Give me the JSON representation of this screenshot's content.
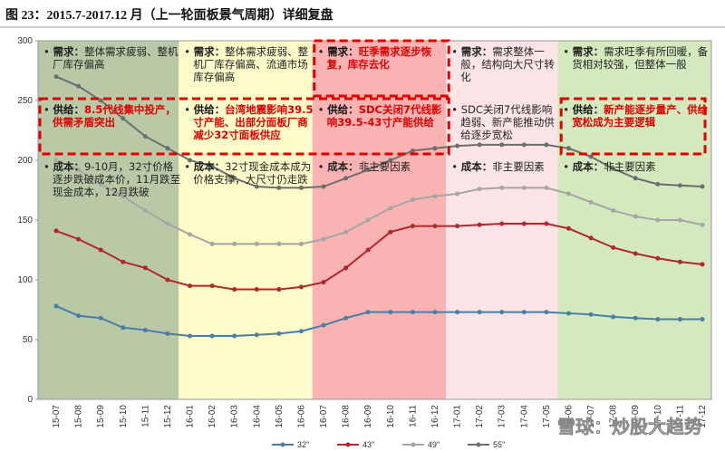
{
  "title": "图 23：2015.7-2017.12 月（上一轮面板景气周期）详细复盘",
  "watermark": "雪球：炒股大趋势",
  "chart_data": {
    "type": "line",
    "categories": [
      "15-07",
      "15-08",
      "15-09",
      "15-10",
      "15-11",
      "15-12",
      "16-01",
      "16-02",
      "16-03",
      "16-04",
      "16-05",
      "16-06",
      "16-07",
      "16-08",
      "16-09",
      "16-10",
      "16-11",
      "16-12",
      "17-01",
      "17-02",
      "17-03",
      "17-04",
      "17-05",
      "17-06",
      "17-07",
      "17-08",
      "17-09",
      "17-10",
      "17-11",
      "17-12"
    ],
    "series": [
      {
        "name": "32''",
        "color": "#4a7fa5",
        "values": [
          78,
          70,
          68,
          60,
          58,
          55,
          53,
          53,
          53,
          54,
          55,
          57,
          62,
          68,
          73,
          73,
          73,
          73,
          73,
          73,
          73,
          73,
          73,
          72,
          71,
          69,
          68,
          67,
          67,
          67
        ]
      },
      {
        "name": "43''",
        "color": "#b3262c",
        "values": [
          141,
          134,
          125,
          115,
          110,
          100,
          95,
          95,
          92,
          92,
          92,
          94,
          98,
          110,
          125,
          140,
          145,
          145,
          145,
          146,
          147,
          147,
          147,
          143,
          135,
          127,
          122,
          118,
          115,
          113
        ]
      },
      {
        "name": "49''",
        "color": "#a6a6a6",
        "values": [
          200,
          192,
          180,
          170,
          158,
          147,
          138,
          130,
          130,
          130,
          130,
          130,
          134,
          140,
          150,
          160,
          167,
          170,
          172,
          176,
          177,
          177,
          177,
          172,
          165,
          158,
          153,
          150,
          150,
          146
        ]
      },
      {
        "name": "55''",
        "color": "#6e6e6e",
        "values": [
          270,
          262,
          250,
          235,
          220,
          210,
          200,
          195,
          185,
          178,
          177,
          177,
          178,
          185,
          192,
          200,
          208,
          210,
          212,
          213,
          213,
          213,
          213,
          210,
          203,
          193,
          185,
          180,
          179,
          178
        ]
      }
    ],
    "ylim": [
      0,
      300
    ],
    "yticks": [
      0,
      50,
      100,
      150,
      200,
      250,
      300
    ],
    "periods": [
      {
        "from": "15-07",
        "to": "15-12",
        "color": "#b9c9a6",
        "demand": {
          "label": "需求：",
          "text": "整体需求疲弱、整机厂库存偏高"
        },
        "supply": {
          "label": "供给：",
          "text": "8.5代线集中投产，供需矛盾突出",
          "highlight": true
        },
        "cost": {
          "label": "成本：",
          "text": "9-10月，32寸价格逐步跌破成本价，11月跌至现金成本，12月跌破"
        }
      },
      {
        "from": "16-01",
        "to": "16-06",
        "color": "#fdfbc9",
        "demand": {
          "label": "需求：",
          "text": "整体需求疲弱、整机厂库存偏高、流通市场库存偏高"
        },
        "supply": {
          "label": "供给：",
          "text": "台湾地震影响39.5寸产能、出部分面板厂商减少32寸面板供应",
          "highlight": true
        },
        "cost": {
          "label": "成本：",
          "text": "32寸现金成本成为价格支撑，大尺寸仍走跌"
        }
      },
      {
        "from": "16-07",
        "to": "16-12",
        "color": "#f9b3b3",
        "demand": {
          "label": "需求：",
          "text": "旺季需求逐步恢复，库存去化",
          "highlight": true
        },
        "supply": {
          "label": "供给：",
          "text": "SDC关闭7代线影响39.5-43寸产能供给",
          "highlight": true
        },
        "cost": {
          "label": "成本：",
          "text": "非主要因素"
        }
      },
      {
        "from": "17-01",
        "to": "17-05",
        "color": "#fde4e6",
        "demand": {
          "label": "需求：",
          "text": "需求整体一般，结构向大尺寸转化"
        },
        "supply": {
          "label": "",
          "text": "SDC关闭7代线影响趋弱、新产能推动供给逐步宽松"
        },
        "cost": {
          "label": "成本：",
          "text": "非主要因素"
        }
      },
      {
        "from": "17-06",
        "to": "17-12",
        "color": "#d4e9bd",
        "demand": {
          "label": "需求：",
          "text": "需求旺季有所回暖，备货相对较强，但整体一般"
        },
        "supply": {
          "label": "供给：",
          "text": "新产能逐步量产、供给宽松成为主要逻辑",
          "highlight": true
        },
        "cost": {
          "label": "成本：",
          "text": "非主要因素"
        }
      }
    ]
  }
}
